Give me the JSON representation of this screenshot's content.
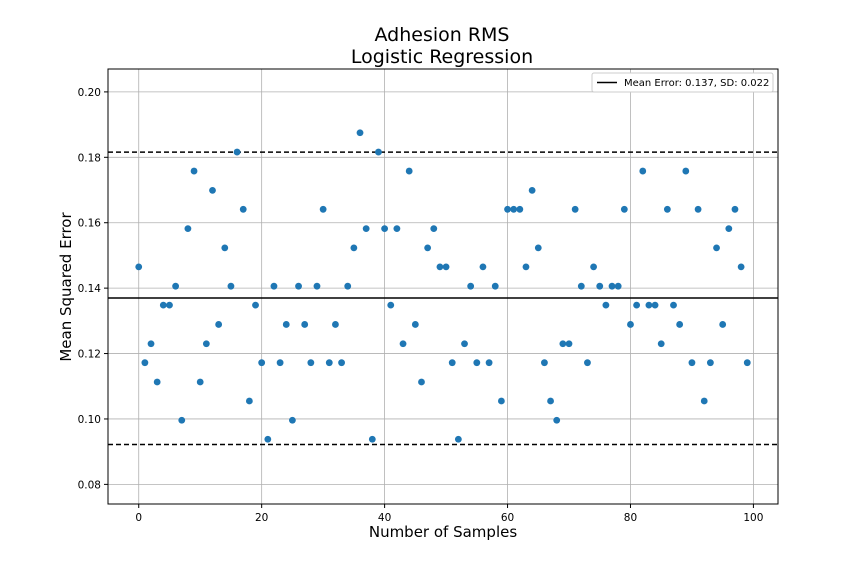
{
  "chart_data": {
    "type": "scatter",
    "title_line1": "Adhesion RMS",
    "title_line2": "Logistic Regression",
    "xlabel": "Number of Samples",
    "ylabel": "Mean Squared Error",
    "xlim": [
      -5,
      104
    ],
    "ylim": [
      0.074,
      0.207
    ],
    "xticks": [
      0,
      20,
      40,
      60,
      80,
      100
    ],
    "xtick_labels": [
      "0",
      "20",
      "40",
      "60",
      "80",
      "100"
    ],
    "yticks": [
      0.08,
      0.1,
      0.12,
      0.14,
      0.16,
      0.18,
      0.2
    ],
    "ytick_labels": [
      "0.08",
      "0.10",
      "0.12",
      "0.14",
      "0.16",
      "0.18",
      "0.20"
    ],
    "grid": true,
    "legend_position": "top-right",
    "legend_label": "Mean Error: 0.137, SD: 0.022",
    "mean_line": 0.137,
    "sd_lines": [
      0.0922,
      0.1816
    ],
    "point_color": "#1f77b4",
    "x": [
      0,
      1,
      2,
      3,
      4,
      5,
      6,
      7,
      8,
      9,
      10,
      11,
      12,
      13,
      14,
      15,
      16,
      17,
      18,
      19,
      20,
      21,
      22,
      23,
      24,
      25,
      26,
      27,
      28,
      29,
      30,
      31,
      32,
      33,
      34,
      35,
      36,
      37,
      38,
      39,
      40,
      41,
      42,
      43,
      44,
      45,
      46,
      47,
      48,
      49,
      50,
      51,
      52,
      53,
      54,
      55,
      56,
      57,
      58,
      59,
      60,
      61,
      62,
      63,
      64,
      65,
      66,
      67,
      68,
      69,
      70,
      71,
      72,
      73,
      74,
      75,
      76,
      77,
      78,
      79,
      80,
      81,
      82,
      83,
      84,
      85,
      86,
      87,
      88,
      89,
      90,
      91,
      92,
      93,
      94,
      95,
      96,
      97,
      98,
      99
    ],
    "y": [
      0.1465,
      0.1172,
      0.123,
      0.1113,
      0.1348,
      0.1348,
      0.1406,
      0.0996,
      0.1582,
      0.1758,
      0.1113,
      0.123,
      0.1699,
      0.1289,
      0.1523,
      0.1406,
      0.1816,
      0.1641,
      0.1055,
      0.1348,
      0.1172,
      0.0938,
      0.1406,
      0.1172,
      0.1289,
      0.0996,
      0.1406,
      0.1289,
      0.1172,
      0.1406,
      0.1641,
      0.1172,
      0.1289,
      0.1172,
      0.1406,
      0.1523,
      0.1875,
      0.1582,
      0.0938,
      0.1816,
      0.1582,
      0.1348,
      0.1582,
      0.123,
      0.1758,
      0.1289,
      0.1113,
      0.1523,
      0.1582,
      0.1465,
      0.1465,
      0.1172,
      0.0938,
      0.123,
      0.1406,
      0.1172,
      0.1465,
      0.1172,
      0.1406,
      0.1055,
      0.1641,
      0.1641,
      0.1641,
      0.1465,
      0.1699,
      0.1523,
      0.1172,
      0.1055,
      0.0996,
      0.123,
      0.123,
      0.1641,
      0.1406,
      0.1172,
      0.1465,
      0.1406,
      0.1348,
      0.1406,
      0.1406,
      0.1641,
      0.1289,
      0.1348,
      0.1758,
      0.1348,
      0.1348,
      0.123,
      0.1641,
      0.1348,
      0.1289,
      0.1758,
      0.1172,
      0.1641,
      0.1055,
      0.1172,
      0.1523,
      0.1289,
      0.1582,
      0.1641,
      0.1465,
      0.1172
    ]
  }
}
